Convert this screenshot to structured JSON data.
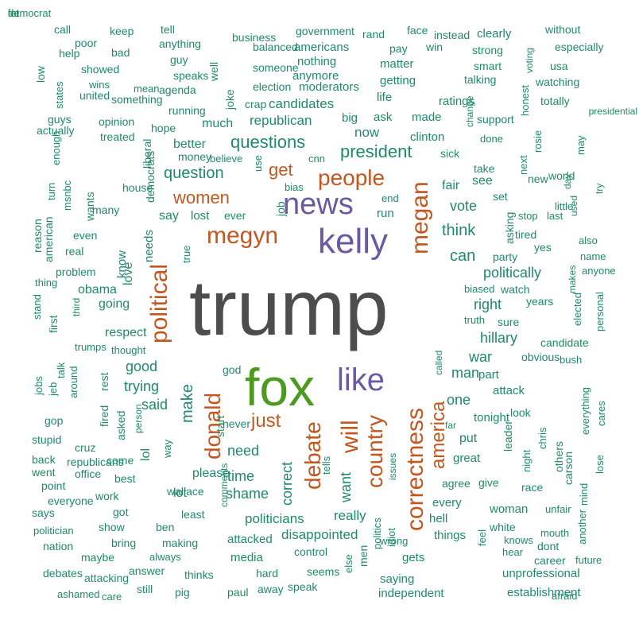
{
  "colors": {
    "gray": "#4d4d4d",
    "green": "#4c9a1e",
    "purple": "#6a5aa6",
    "orange": "#c4561f",
    "teal": "#1f8a6b"
  },
  "words": [
    {
      "t": "trump",
      "c": "gray"
    },
    {
      "t": "fox",
      "c": "green"
    },
    {
      "t": "kelly",
      "c": "purple"
    },
    {
      "t": "news",
      "c": "purple"
    },
    {
      "t": "like",
      "c": "purple"
    },
    {
      "t": "megyn",
      "c": "orange"
    },
    {
      "t": "political",
      "c": "orange"
    },
    {
      "t": "people",
      "c": "orange"
    },
    {
      "t": "megan",
      "c": "orange"
    },
    {
      "t": "will",
      "c": "orange"
    },
    {
      "t": "correctness",
      "c": "orange"
    },
    {
      "t": "donald",
      "c": "orange"
    },
    {
      "t": "debate",
      "c": "orange"
    },
    {
      "t": "country",
      "c": "orange"
    },
    {
      "t": "america",
      "c": "orange"
    },
    {
      "t": "just",
      "c": "orange"
    },
    {
      "t": "women",
      "c": "orange"
    },
    {
      "t": "get",
      "c": "orange"
    },
    {
      "t": "president",
      "c": "teal"
    },
    {
      "t": "questions",
      "c": "teal"
    },
    {
      "t": "question",
      "c": "teal"
    },
    {
      "t": "think",
      "c": "teal"
    },
    {
      "t": "can",
      "c": "teal"
    },
    {
      "t": "vote",
      "c": "teal"
    },
    {
      "t": "politically",
      "c": "teal"
    },
    {
      "t": "right",
      "c": "teal"
    },
    {
      "t": "hillary",
      "c": "teal"
    },
    {
      "t": "war",
      "c": "teal"
    },
    {
      "t": "man",
      "c": "teal"
    },
    {
      "t": "one",
      "c": "teal"
    },
    {
      "t": "make",
      "c": "teal"
    },
    {
      "t": "good",
      "c": "teal"
    },
    {
      "t": "trying",
      "c": "teal"
    },
    {
      "t": "said",
      "c": "teal"
    },
    {
      "t": "need",
      "c": "teal"
    },
    {
      "t": "time",
      "c": "teal"
    },
    {
      "t": "shame",
      "c": "teal"
    },
    {
      "t": "correct",
      "c": "teal"
    },
    {
      "t": "want",
      "c": "teal"
    },
    {
      "t": "really",
      "c": "teal"
    },
    {
      "t": "politicians",
      "c": "teal"
    },
    {
      "t": "disappointed",
      "c": "teal"
    },
    {
      "t": "candidates",
      "c": "teal"
    },
    {
      "t": "republican",
      "c": "teal"
    },
    {
      "t": "now",
      "c": "teal"
    },
    {
      "t": "clinton",
      "c": "teal"
    },
    {
      "t": "ask",
      "c": "teal"
    },
    {
      "t": "made",
      "c": "teal"
    },
    {
      "t": "big",
      "c": "teal"
    },
    {
      "t": "much",
      "c": "teal"
    },
    {
      "t": "better",
      "c": "teal"
    },
    {
      "t": "going",
      "c": "teal"
    },
    {
      "t": "respect",
      "c": "teal"
    },
    {
      "t": "obama",
      "c": "teal"
    },
    {
      "t": "love",
      "c": "teal"
    },
    {
      "t": "needs",
      "c": "teal"
    },
    {
      "t": "know",
      "c": "teal"
    },
    {
      "t": "say",
      "c": "teal"
    },
    {
      "t": "lost",
      "c": "teal"
    },
    {
      "t": "ever",
      "c": "teal"
    },
    {
      "t": "job",
      "c": "teal"
    },
    {
      "t": "run",
      "c": "teal"
    },
    {
      "t": "end",
      "c": "teal"
    },
    {
      "t": "bias",
      "c": "teal"
    },
    {
      "t": "cnn",
      "c": "teal"
    },
    {
      "t": "use",
      "c": "teal"
    },
    {
      "t": "fair",
      "c": "teal"
    },
    {
      "t": "see",
      "c": "teal"
    },
    {
      "t": "take",
      "c": "teal"
    },
    {
      "t": "sick",
      "c": "teal"
    },
    {
      "t": "done",
      "c": "teal"
    },
    {
      "t": "set",
      "c": "teal"
    },
    {
      "t": "asking",
      "c": "teal"
    },
    {
      "t": "party",
      "c": "teal"
    },
    {
      "t": "tired",
      "c": "teal"
    },
    {
      "t": "stop",
      "c": "teal"
    },
    {
      "t": "last",
      "c": "teal"
    },
    {
      "t": "yes",
      "c": "teal"
    },
    {
      "t": "years",
      "c": "teal"
    },
    {
      "t": "watch",
      "c": "teal"
    },
    {
      "t": "biased",
      "c": "teal"
    },
    {
      "t": "truth",
      "c": "teal"
    },
    {
      "t": "sure",
      "c": "teal"
    },
    {
      "t": "candidate",
      "c": "teal"
    },
    {
      "t": "obvious",
      "c": "teal"
    },
    {
      "t": "bush",
      "c": "teal"
    },
    {
      "t": "part",
      "c": "teal"
    },
    {
      "t": "attack",
      "c": "teal"
    },
    {
      "t": "tonight",
      "c": "teal"
    },
    {
      "t": "look",
      "c": "teal"
    },
    {
      "t": "put",
      "c": "teal"
    },
    {
      "t": "great",
      "c": "teal"
    },
    {
      "t": "agree",
      "c": "teal"
    },
    {
      "t": "give",
      "c": "teal"
    },
    {
      "t": "every",
      "c": "teal"
    },
    {
      "t": "woman",
      "c": "teal"
    },
    {
      "t": "hell",
      "c": "teal"
    },
    {
      "t": "things",
      "c": "teal"
    },
    {
      "t": "white",
      "c": "teal"
    },
    {
      "t": "knows",
      "c": "teal"
    },
    {
      "t": "hear",
      "c": "teal"
    },
    {
      "t": "gets",
      "c": "teal"
    },
    {
      "t": "saying",
      "c": "teal"
    },
    {
      "t": "independent",
      "c": "teal"
    },
    {
      "t": "unprofessional",
      "c": "teal"
    },
    {
      "t": "establishment",
      "c": "teal"
    },
    {
      "t": "afraid",
      "c": "teal"
    },
    {
      "t": "career",
      "c": "teal"
    },
    {
      "t": "future",
      "c": "teal"
    },
    {
      "t": "dont",
      "c": "teal"
    },
    {
      "t": "mouth",
      "c": "teal"
    },
    {
      "t": "unfair",
      "c": "teal"
    },
    {
      "t": "race",
      "c": "teal"
    },
    {
      "t": "leader",
      "c": "teal"
    },
    {
      "t": "night",
      "c": "teal"
    },
    {
      "t": "chris",
      "c": "teal"
    },
    {
      "t": "others",
      "c": "teal"
    },
    {
      "t": "carson",
      "c": "teal"
    },
    {
      "t": "mind",
      "c": "teal"
    },
    {
      "t": "another",
      "c": "teal"
    },
    {
      "t": "everything",
      "c": "teal"
    },
    {
      "t": "lose",
      "c": "teal"
    },
    {
      "t": "cares",
      "c": "teal"
    },
    {
      "t": "personal",
      "c": "teal"
    },
    {
      "t": "elected",
      "c": "teal"
    },
    {
      "t": "anyone",
      "c": "teal"
    },
    {
      "t": "makes",
      "c": "teal"
    },
    {
      "t": "name",
      "c": "teal"
    },
    {
      "t": "also",
      "c": "teal"
    },
    {
      "t": "used",
      "c": "teal"
    },
    {
      "t": "little",
      "c": "teal"
    },
    {
      "t": "try",
      "c": "teal"
    },
    {
      "t": "may",
      "c": "teal"
    },
    {
      "t": "world",
      "c": "teal"
    },
    {
      "t": "new",
      "c": "teal"
    },
    {
      "t": "day",
      "c": "teal"
    },
    {
      "t": "rosie",
      "c": "teal"
    },
    {
      "t": "next",
      "c": "teal"
    },
    {
      "t": "presidential",
      "c": "teal"
    },
    {
      "t": "totally",
      "c": "teal"
    },
    {
      "t": "watching",
      "c": "teal"
    },
    {
      "t": "usa",
      "c": "teal"
    },
    {
      "t": "especially",
      "c": "teal"
    },
    {
      "t": "without",
      "c": "teal"
    },
    {
      "t": "voting",
      "c": "teal"
    },
    {
      "t": "clearly",
      "c": "teal"
    },
    {
      "t": "strong",
      "c": "teal"
    },
    {
      "t": "smart",
      "c": "teal"
    },
    {
      "t": "talking",
      "c": "teal"
    },
    {
      "t": "ratings",
      "c": "teal"
    },
    {
      "t": "honest",
      "c": "teal"
    },
    {
      "t": "support",
      "c": "teal"
    },
    {
      "t": "change",
      "c": "teal"
    },
    {
      "t": "instead",
      "c": "teal"
    },
    {
      "t": "face",
      "c": "teal"
    },
    {
      "t": "win",
      "c": "teal"
    },
    {
      "t": "rand",
      "c": "teal"
    },
    {
      "t": "pay",
      "c": "teal"
    },
    {
      "t": "matter",
      "c": "teal"
    },
    {
      "t": "getting",
      "c": "teal"
    },
    {
      "t": "life",
      "c": "teal"
    },
    {
      "t": "government",
      "c": "teal"
    },
    {
      "t": "americans",
      "c": "teal"
    },
    {
      "t": "nothing",
      "c": "teal"
    },
    {
      "t": "anymore",
      "c": "teal"
    },
    {
      "t": "moderators",
      "c": "teal"
    },
    {
      "t": "business",
      "c": "teal"
    },
    {
      "t": "balanced",
      "c": "teal"
    },
    {
      "t": "someone",
      "c": "teal"
    },
    {
      "t": "election",
      "c": "teal"
    },
    {
      "t": "crap",
      "c": "teal"
    },
    {
      "t": "joke",
      "c": "teal"
    },
    {
      "t": "well",
      "c": "teal"
    },
    {
      "t": "tell",
      "c": "teal"
    },
    {
      "t": "anything",
      "c": "teal"
    },
    {
      "t": "guy",
      "c": "teal"
    },
    {
      "t": "speaks",
      "c": "teal"
    },
    {
      "t": "agenda",
      "c": "teal"
    },
    {
      "t": "running",
      "c": "teal"
    },
    {
      "t": "hope",
      "c": "teal"
    },
    {
      "t": "money",
      "c": "teal"
    },
    {
      "t": "believe",
      "c": "teal"
    },
    {
      "t": "keep",
      "c": "teal"
    },
    {
      "t": "bad",
      "c": "teal"
    },
    {
      "t": "call",
      "c": "teal"
    },
    {
      "t": "poor",
      "c": "teal"
    },
    {
      "t": "help",
      "c": "teal"
    },
    {
      "t": "showed",
      "c": "teal"
    },
    {
      "t": "wins",
      "c": "teal"
    },
    {
      "t": "mean",
      "c": "teal"
    },
    {
      "t": "something",
      "c": "teal"
    },
    {
      "t": "united",
      "c": "teal"
    },
    {
      "t": "low",
      "c": "teal"
    },
    {
      "t": "states",
      "c": "teal"
    },
    {
      "t": "guys",
      "c": "teal"
    },
    {
      "t": "opinion",
      "c": "teal"
    },
    {
      "t": "actually",
      "c": "teal"
    },
    {
      "t": "treated",
      "c": "teal"
    },
    {
      "t": "enough",
      "c": "teal"
    },
    {
      "t": "turn",
      "c": "teal"
    },
    {
      "t": "wants",
      "c": "teal"
    },
    {
      "t": "msnbc",
      "c": "teal"
    },
    {
      "t": "reason",
      "c": "teal"
    },
    {
      "t": "american",
      "c": "teal"
    },
    {
      "t": "house",
      "c": "teal"
    },
    {
      "t": "democrats",
      "c": "teal"
    },
    {
      "t": "liberal",
      "c": "teal"
    },
    {
      "t": "many",
      "c": "teal"
    },
    {
      "t": "even",
      "c": "teal"
    },
    {
      "t": "real",
      "c": "teal"
    },
    {
      "t": "problem",
      "c": "teal"
    },
    {
      "t": "true",
      "c": "teal"
    },
    {
      "t": "thing",
      "c": "teal"
    },
    {
      "t": "stand",
      "c": "teal"
    },
    {
      "t": "first",
      "c": "teal"
    },
    {
      "t": "third",
      "c": "teal"
    },
    {
      "t": "trumps",
      "c": "teal"
    },
    {
      "t": "thought",
      "c": "teal"
    },
    {
      "t": "jobs",
      "c": "teal"
    },
    {
      "t": "jeb",
      "c": "teal"
    },
    {
      "t": "talk",
      "c": "teal"
    },
    {
      "t": "around",
      "c": "teal"
    },
    {
      "t": "rest",
      "c": "teal"
    },
    {
      "t": "gop",
      "c": "teal"
    },
    {
      "t": "fired",
      "c": "teal"
    },
    {
      "t": "asked",
      "c": "teal"
    },
    {
      "t": "person",
      "c": "teal"
    },
    {
      "t": "god",
      "c": "teal"
    },
    {
      "t": "never",
      "c": "teal"
    },
    {
      "t": "start",
      "c": "teal"
    },
    {
      "t": "lol",
      "c": "teal"
    },
    {
      "t": "way",
      "c": "teal"
    },
    {
      "t": "lot",
      "c": "teal"
    },
    {
      "t": "stupid",
      "c": "teal"
    },
    {
      "t": "cruz",
      "c": "teal"
    },
    {
      "t": "back",
      "c": "teal"
    },
    {
      "t": "republicans",
      "c": "teal"
    },
    {
      "t": "come",
      "c": "teal"
    },
    {
      "t": "went",
      "c": "teal"
    },
    {
      "t": "office",
      "c": "teal"
    },
    {
      "t": "best",
      "c": "teal"
    },
    {
      "t": "point",
      "c": "teal"
    },
    {
      "t": "work",
      "c": "teal"
    },
    {
      "t": "wallace",
      "c": "teal"
    },
    {
      "t": "please",
      "c": "teal"
    },
    {
      "t": "everyone",
      "c": "teal"
    },
    {
      "t": "says",
      "c": "teal"
    },
    {
      "t": "got",
      "c": "teal"
    },
    {
      "t": "least",
      "c": "teal"
    },
    {
      "t": "comments",
      "c": "teal"
    },
    {
      "t": "politician",
      "c": "teal"
    },
    {
      "t": "show",
      "c": "teal"
    },
    {
      "t": "ben",
      "c": "teal"
    },
    {
      "t": "nation",
      "c": "teal"
    },
    {
      "t": "bring",
      "c": "teal"
    },
    {
      "t": "making",
      "c": "teal"
    },
    {
      "t": "attacked",
      "c": "teal"
    },
    {
      "t": "maybe",
      "c": "teal"
    },
    {
      "t": "always",
      "c": "teal"
    },
    {
      "t": "media",
      "c": "teal"
    },
    {
      "t": "control",
      "c": "teal"
    },
    {
      "t": "debates",
      "c": "teal"
    },
    {
      "t": "attacking",
      "c": "teal"
    },
    {
      "t": "answer",
      "c": "teal"
    },
    {
      "t": "thinks",
      "c": "teal"
    },
    {
      "t": "hard",
      "c": "teal"
    },
    {
      "t": "seems",
      "c": "teal"
    },
    {
      "t": "ashamed",
      "c": "teal"
    },
    {
      "t": "care",
      "c": "teal"
    },
    {
      "t": "still",
      "c": "teal"
    },
    {
      "t": "pig",
      "c": "teal"
    },
    {
      "t": "paul",
      "c": "teal"
    },
    {
      "t": "away",
      "c": "teal"
    },
    {
      "t": "speak",
      "c": "teal"
    },
    {
      "t": "else",
      "c": "teal"
    },
    {
      "t": "men",
      "c": "teal"
    },
    {
      "t": "politics",
      "c": "teal"
    },
    {
      "t": "idiot",
      "c": "teal"
    },
    {
      "t": "wrong",
      "c": "teal"
    },
    {
      "t": "tells",
      "c": "teal"
    },
    {
      "t": "issues",
      "c": "teal"
    },
    {
      "t": "far",
      "c": "teal"
    },
    {
      "t": "called",
      "c": "teal"
    },
    {
      "t": "feel",
      "c": "teal"
    },
    {
      "t": "let",
      "c": "teal"
    },
    {
      "t": "fat",
      "c": "teal"
    },
    {
      "t": "democrat",
      "c": "teal"
    }
  ]
}
